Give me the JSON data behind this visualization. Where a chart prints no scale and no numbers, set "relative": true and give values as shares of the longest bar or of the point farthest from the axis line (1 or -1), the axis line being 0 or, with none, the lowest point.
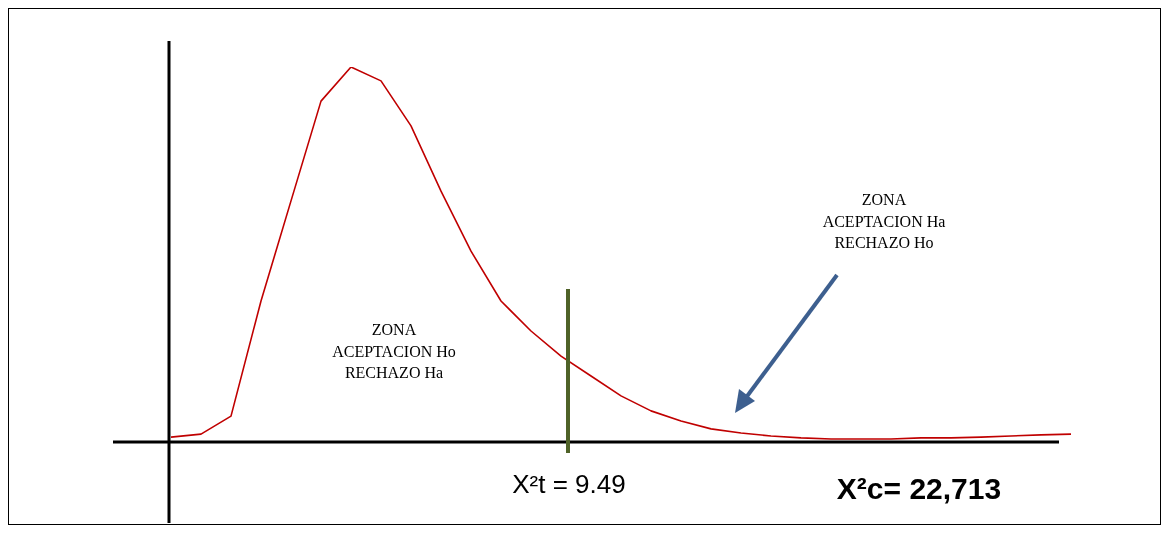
{
  "chart_data": {
    "type": "line",
    "relative": true,
    "categories": [
      null,
      null,
      null,
      null,
      null,
      null,
      null,
      null,
      null,
      null,
      null,
      null,
      null,
      null,
      null,
      null,
      null,
      null,
      null,
      null,
      null,
      null,
      null,
      null,
      null,
      null,
      null,
      null,
      null,
      null,
      null
    ],
    "series": [
      {
        "color": "#c00000",
        "values": [
          0.013,
          0.021,
          0.069,
          0.376,
          0.643,
          0.909,
          1.0,
          0.963,
          0.843,
          0.669,
          0.509,
          0.376,
          0.296,
          0.229,
          0.176,
          0.123,
          0.083,
          0.056,
          0.035,
          0.024,
          0.016,
          0.011,
          0.008,
          0.008,
          0.008,
          0.011,
          0.011,
          0.013,
          0.016,
          0.019,
          0.021
        ]
      }
    ],
    "annotations": [
      "ZONA\nACEPTACION Ho\nRECHAZO Ha",
      "ZONA\nACEPTACION Ha\nRECHAZO Ho",
      "X²t = 9.49",
      "X²c= 22,713"
    ]
  }
}
